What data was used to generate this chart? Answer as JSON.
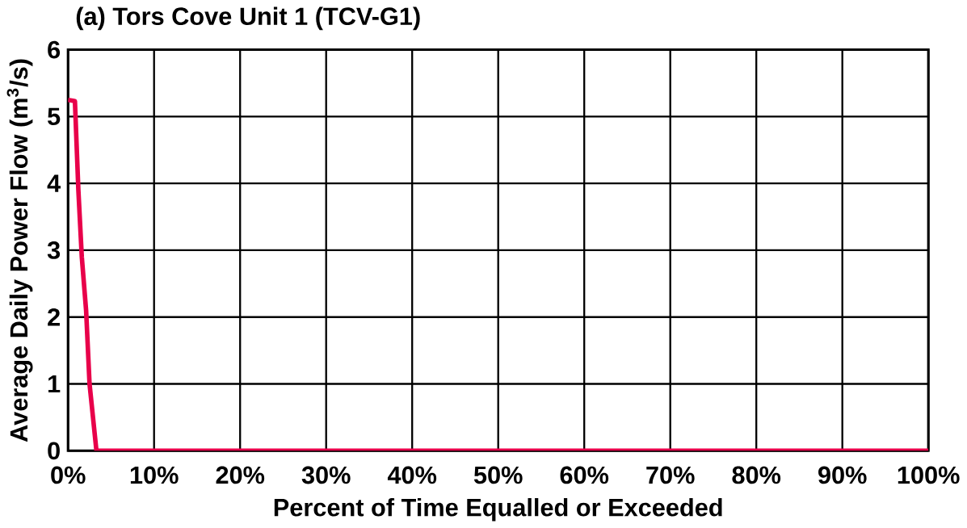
{
  "chart_data": {
    "type": "line",
    "title": "(a) Tors Cove Unit 1 (TCV-G1)",
    "xlabel": "Percent of Time Equalled or Exceeded",
    "ylabel": "Average Daily Power Flow (m$^{3}$/s)",
    "x": [
      0,
      0.8,
      1.2,
      1.6,
      2.1,
      2.5,
      3.3,
      10,
      20,
      30,
      40,
      50,
      60,
      70,
      80,
      90,
      100
    ],
    "series": [
      {
        "color": "#e8004a",
        "values": [
          5.25,
          5.23,
          3.9,
          2.9,
          2.1,
          1.0,
          0,
          0,
          0,
          0,
          0,
          0,
          0,
          0,
          0,
          0,
          0
        ]
      }
    ],
    "xlim": [
      0,
      100
    ],
    "ylim": [
      0,
      6
    ],
    "xticks": [
      {
        "value": 0,
        "label": "0%"
      },
      {
        "value": 10,
        "label": "10%"
      },
      {
        "value": 20,
        "label": "20%"
      },
      {
        "value": 30,
        "label": "30%"
      },
      {
        "value": 40,
        "label": "40%"
      },
      {
        "value": 50,
        "label": "50%"
      },
      {
        "value": 60,
        "label": "60%"
      },
      {
        "value": 70,
        "label": "70%"
      },
      {
        "value": 80,
        "label": "80%"
      },
      {
        "value": 90,
        "label": "90%"
      },
      {
        "value": 100,
        "label": "100%"
      }
    ],
    "yticks": [
      0,
      1,
      2,
      3,
      4,
      5,
      6
    ],
    "grid": true,
    "marker": "none",
    "line_style": "solid"
  }
}
